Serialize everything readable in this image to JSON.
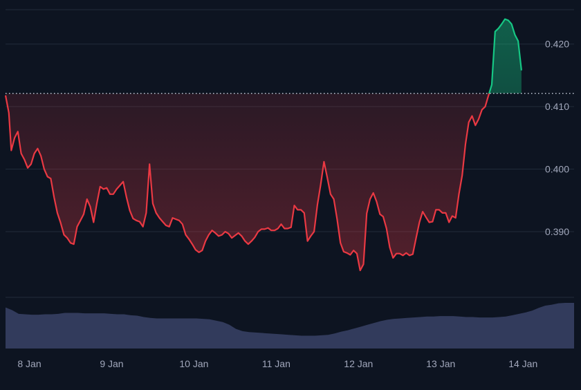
{
  "colors": {
    "background": "#0d1421",
    "grid": "#222c3b",
    "price_down": "#ea3943",
    "price_up": "#16c784",
    "volume": "#3a4266",
    "axis_text": "#a1a7bb",
    "baseline": "#cfd6e4"
  },
  "chart_data": {
    "type": "line",
    "title": "",
    "xlabel": "",
    "ylabel": "",
    "baseline": 0.4121,
    "ylim": [
      0.3795,
      0.4255
    ],
    "y_ticks": [
      0.39,
      0.4,
      0.41,
      0.42
    ],
    "y_tick_labels": [
      "0.390",
      "0.400",
      "0.410",
      "0.420"
    ],
    "x_ticks": [
      1,
      2,
      3,
      4,
      5,
      6,
      7
    ],
    "x_tick_labels": [
      "8 Jan",
      "9 Jan",
      "10 Jan",
      "11 Jan",
      "12 Jan",
      "13 Jan",
      "14 Jan"
    ],
    "xlim": [
      0.71,
      7.62
    ],
    "series": [
      {
        "x": [
          0.71,
          0.75,
          0.78,
          0.82,
          0.86,
          0.9,
          0.94,
          0.98,
          1.02,
          1.06,
          1.1,
          1.14,
          1.18,
          1.22,
          1.26,
          1.3,
          1.34,
          1.38,
          1.42,
          1.46,
          1.5,
          1.54,
          1.58,
          1.62,
          1.66,
          1.7,
          1.74,
          1.78,
          1.82,
          1.86,
          1.9,
          1.94,
          1.98,
          2.02,
          2.06,
          2.1,
          2.14,
          2.18,
          2.22,
          2.26,
          2.3,
          2.34,
          2.38,
          2.42,
          2.46,
          2.5,
          2.54,
          2.58,
          2.62,
          2.66,
          2.7,
          2.74,
          2.78,
          2.82,
          2.86,
          2.9,
          2.94,
          2.98,
          3.02,
          3.06,
          3.1,
          3.14,
          3.18,
          3.22,
          3.26,
          3.3,
          3.34,
          3.38,
          3.42,
          3.46,
          3.5,
          3.54,
          3.58,
          3.62,
          3.66,
          3.7,
          3.74,
          3.78,
          3.82,
          3.86,
          3.9,
          3.94,
          3.98,
          4.02,
          4.06,
          4.1,
          4.14,
          4.18,
          4.22,
          4.26,
          4.3,
          4.34,
          4.38,
          4.42,
          4.46,
          4.5,
          4.54,
          4.58,
          4.62,
          4.66,
          4.7,
          4.74,
          4.78,
          4.82,
          4.86,
          4.9,
          4.94,
          4.98,
          5.02,
          5.06,
          5.1,
          5.14,
          5.18,
          5.22,
          5.26,
          5.3,
          5.34,
          5.38,
          5.42,
          5.46,
          5.5,
          5.54,
          5.58,
          5.62,
          5.66,
          5.7,
          5.74,
          5.78,
          5.82,
          5.86,
          5.9,
          5.94,
          5.98,
          6.02,
          6.06,
          6.1,
          6.14,
          6.18,
          6.22,
          6.26,
          6.3,
          6.34,
          6.38,
          6.42,
          6.46,
          6.5,
          6.54,
          6.58,
          6.62,
          6.66,
          6.7,
          6.74,
          6.78,
          6.82,
          6.86,
          6.9,
          6.94,
          6.98
        ],
        "values": [
          0.4118,
          0.409,
          0.403,
          0.405,
          0.406,
          0.4025,
          0.4015,
          0.4002,
          0.4008,
          0.4025,
          0.4033,
          0.4021,
          0.4,
          0.3988,
          0.3985,
          0.3955,
          0.393,
          0.3914,
          0.3895,
          0.389,
          0.3882,
          0.388,
          0.3908,
          0.3918,
          0.3928,
          0.3952,
          0.394,
          0.3915,
          0.3945,
          0.3972,
          0.3968,
          0.397,
          0.396,
          0.396,
          0.3968,
          0.3974,
          0.398,
          0.3955,
          0.3934,
          0.3921,
          0.3918,
          0.3916,
          0.3908,
          0.393,
          0.4008,
          0.3945,
          0.393,
          0.3922,
          0.3916,
          0.391,
          0.3908,
          0.3922,
          0.392,
          0.3918,
          0.3912,
          0.3895,
          0.3888,
          0.388,
          0.3871,
          0.3867,
          0.387,
          0.3885,
          0.3895,
          0.3902,
          0.3898,
          0.3893,
          0.3895,
          0.39,
          0.3897,
          0.389,
          0.3894,
          0.3898,
          0.3893,
          0.3885,
          0.388,
          0.3885,
          0.3891,
          0.39,
          0.3904,
          0.3904,
          0.3906,
          0.3902,
          0.3902,
          0.3905,
          0.3912,
          0.3905,
          0.3905,
          0.3907,
          0.3942,
          0.3935,
          0.3935,
          0.393,
          0.3885,
          0.3893,
          0.39,
          0.3943,
          0.3975,
          0.4012,
          0.3987,
          0.396,
          0.3952,
          0.392,
          0.3882,
          0.3868,
          0.3866,
          0.3863,
          0.387,
          0.3865,
          0.3838,
          0.3848,
          0.3929,
          0.3952,
          0.3962,
          0.3948,
          0.3928,
          0.3924,
          0.3905,
          0.3875,
          0.3858,
          0.3865,
          0.3865,
          0.3862,
          0.3866,
          0.3862,
          0.3864,
          0.389,
          0.3915,
          0.3932,
          0.3923,
          0.3915,
          0.3916,
          0.3935,
          0.3935,
          0.393,
          0.393,
          0.3915,
          0.3925,
          0.3922,
          0.396,
          0.399,
          0.404,
          0.4075,
          0.4085,
          0.407,
          0.408,
          0.4095,
          0.41,
          0.4118,
          0.4135,
          0.422,
          0.4225,
          0.4232,
          0.424,
          0.4238,
          0.4232,
          0.4215,
          0.4205,
          0.4158
        ]
      }
    ],
    "volume": {
      "x": [
        0.71,
        0.79,
        0.87,
        0.95,
        1.03,
        1.11,
        1.19,
        1.27,
        1.35,
        1.43,
        1.51,
        1.59,
        1.67,
        1.75,
        1.83,
        1.91,
        1.99,
        2.07,
        2.15,
        2.23,
        2.31,
        2.39,
        2.47,
        2.55,
        2.63,
        2.71,
        2.79,
        2.87,
        2.95,
        3.03,
        3.11,
        3.19,
        3.27,
        3.35,
        3.43,
        3.51,
        3.59,
        3.67,
        3.75,
        3.83,
        3.91,
        3.99,
        4.07,
        4.15,
        4.23,
        4.31,
        4.39,
        4.47,
        4.55,
        4.63,
        4.71,
        4.79,
        4.87,
        4.95,
        5.03,
        5.11,
        5.19,
        5.27,
        5.35,
        5.43,
        5.51,
        5.59,
        5.67,
        5.75,
        5.83,
        5.91,
        5.99,
        6.07,
        6.15,
        6.23,
        6.31,
        6.39,
        6.47,
        6.55,
        6.63,
        6.71,
        6.79,
        6.87,
        6.95,
        7.03,
        7.11,
        7.19,
        7.27,
        7.35,
        7.43,
        7.51,
        7.62
      ],
      "values": [
        0.9,
        0.84,
        0.76,
        0.75,
        0.74,
        0.74,
        0.75,
        0.75,
        0.76,
        0.78,
        0.78,
        0.78,
        0.77,
        0.77,
        0.77,
        0.77,
        0.76,
        0.75,
        0.75,
        0.73,
        0.72,
        0.69,
        0.67,
        0.66,
        0.66,
        0.66,
        0.66,
        0.66,
        0.66,
        0.66,
        0.65,
        0.64,
        0.61,
        0.58,
        0.52,
        0.43,
        0.38,
        0.36,
        0.35,
        0.34,
        0.33,
        0.32,
        0.31,
        0.3,
        0.29,
        0.28,
        0.28,
        0.28,
        0.29,
        0.3,
        0.33,
        0.37,
        0.4,
        0.44,
        0.48,
        0.52,
        0.56,
        0.6,
        0.63,
        0.65,
        0.66,
        0.67,
        0.68,
        0.69,
        0.7,
        0.7,
        0.71,
        0.71,
        0.71,
        0.7,
        0.69,
        0.69,
        0.68,
        0.68,
        0.68,
        0.69,
        0.7,
        0.73,
        0.76,
        0.79,
        0.83,
        0.89,
        0.94,
        0.96,
        0.99,
        1.0,
        1.0
      ]
    }
  }
}
